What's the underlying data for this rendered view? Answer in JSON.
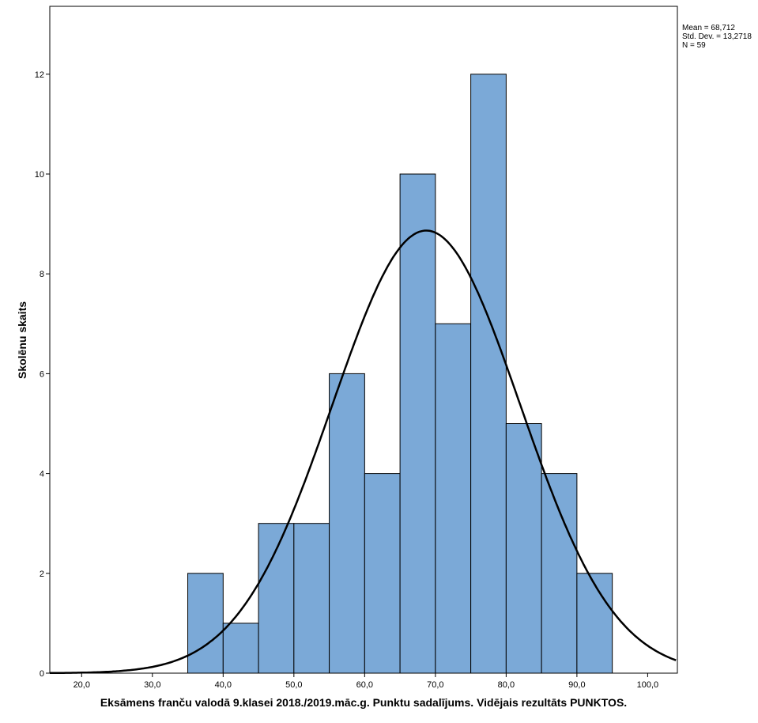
{
  "chart_data": {
    "type": "bar",
    "subtype": "histogram",
    "xlabel": "Eksāmens franču valodā 9.klasei 2018./2019.māc.g. Punktu sadalījums. Vidējais rezultāts PUNKTOS.",
    "ylabel": "Skolēnu skaits",
    "xlim": [
      15.5,
      104.2
    ],
    "ylim": [
      0,
      13.36
    ],
    "x_ticks": [
      20,
      30,
      40,
      50,
      60,
      70,
      80,
      90,
      100
    ],
    "x_tick_labels": [
      "20,0",
      "30,0",
      "40,0",
      "50,0",
      "60,0",
      "70,0",
      "80,0",
      "90,0",
      "100,0"
    ],
    "y_ticks": [
      0,
      2,
      4,
      6,
      8,
      10,
      12
    ],
    "y_tick_labels": [
      "0",
      "2",
      "4",
      "6",
      "8",
      "10",
      "12"
    ],
    "bin_width": 5,
    "bins": [
      {
        "start": 35,
        "end": 40,
        "count": 2
      },
      {
        "start": 40,
        "end": 45,
        "count": 1
      },
      {
        "start": 45,
        "end": 50,
        "count": 3
      },
      {
        "start": 50,
        "end": 55,
        "count": 3
      },
      {
        "start": 55,
        "end": 60,
        "count": 6
      },
      {
        "start": 60,
        "end": 65,
        "count": 4
      },
      {
        "start": 65,
        "end": 70,
        "count": 10
      },
      {
        "start": 70,
        "end": 75,
        "count": 7
      },
      {
        "start": 75,
        "end": 80,
        "count": 12
      },
      {
        "start": 80,
        "end": 85,
        "count": 5
      },
      {
        "start": 85,
        "end": 90,
        "count": 4
      },
      {
        "start": 90,
        "end": 95,
        "count": 2
      }
    ],
    "normal_curve": {
      "mean": 68.712,
      "sd": 13.2718,
      "n": 59
    },
    "stats_text": [
      "Mean = 68,712",
      "Std. Dev. = 13,2718",
      "N = 59"
    ],
    "bar_color": "#7ba9d7",
    "legend_placement": "top-right",
    "grid": false
  }
}
